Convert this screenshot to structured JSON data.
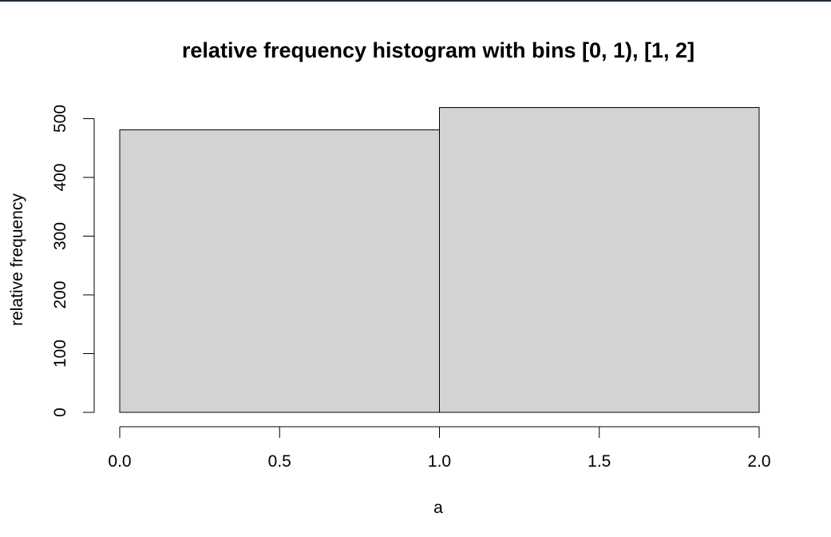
{
  "chart_data": {
    "type": "bar",
    "title": "relative frequency histogram with bins [0, 1), [1, 2]",
    "xlabel": "a",
    "ylabel": "relative frequency",
    "bins": [
      {
        "x0": 0,
        "x1": 1,
        "value": 481
      },
      {
        "x0": 1,
        "x1": 2,
        "value": 519
      }
    ],
    "xlim": [
      0,
      2
    ],
    "ylim": [
      0,
      520
    ],
    "x_ticks": [
      0.0,
      0.5,
      1.0,
      1.5,
      2.0
    ],
    "x_tick_labels": [
      "0.0",
      "0.5",
      "1.0",
      "1.5",
      "2.0"
    ],
    "y_ticks": [
      0,
      100,
      200,
      300,
      400,
      500
    ],
    "y_tick_labels": [
      "0",
      "100",
      "200",
      "300",
      "400",
      "500"
    ],
    "bar_color": "#d3d3d3",
    "grid": false,
    "legend": "none"
  }
}
